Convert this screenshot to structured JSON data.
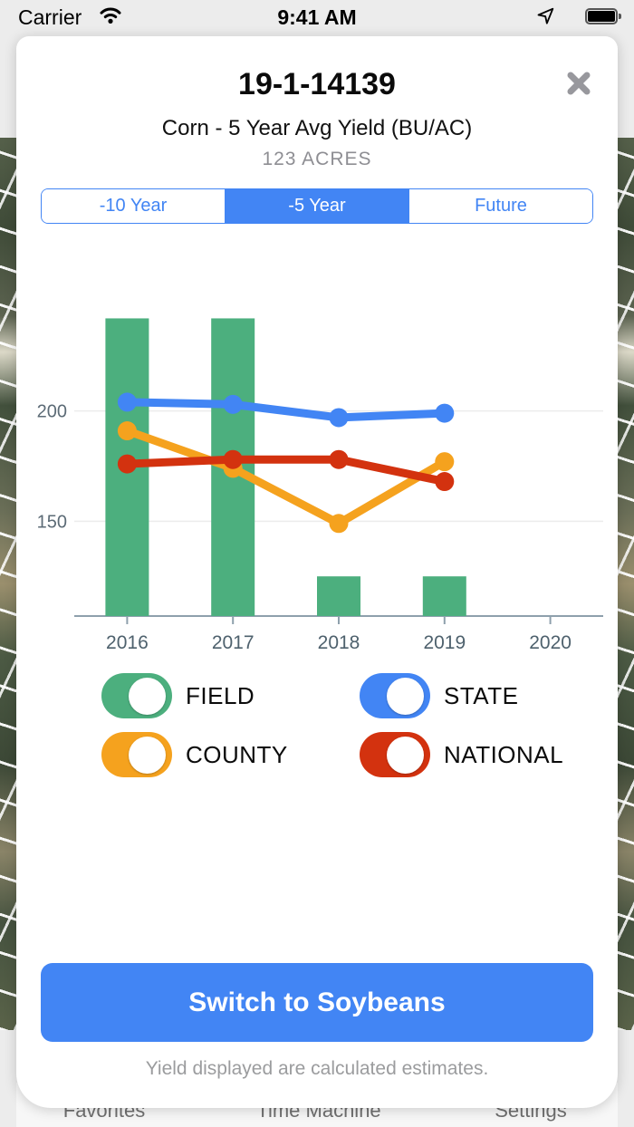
{
  "status_bar": {
    "carrier": "Carrier",
    "time": "9:41 AM"
  },
  "modal": {
    "title": "19-1-14139",
    "subtitle": "Corn - 5 Year Avg Yield (BU/AC)",
    "acres": "123 ACRES"
  },
  "segmented": {
    "options": [
      "-10 Year",
      "-5 Year",
      "Future"
    ],
    "selected": "-5 Year",
    "selected_index": 1
  },
  "chart_data": {
    "type": "bar+line",
    "categories": [
      "2016",
      "2017",
      "2018",
      "2019",
      "2020"
    ],
    "series": [
      {
        "name": "FIELD",
        "type": "bar",
        "color": "#4CAF7E",
        "values": [
          242,
          242,
          125,
          125,
          null
        ]
      },
      {
        "name": "STATE",
        "type": "line",
        "color": "#4285F4",
        "values": [
          204,
          203,
          197,
          199,
          null
        ]
      },
      {
        "name": "COUNTY",
        "type": "line",
        "color": "#F5A21E",
        "values": [
          191,
          174,
          149,
          177,
          null
        ]
      },
      {
        "name": "NATIONAL",
        "type": "line",
        "color": "#D3320F",
        "values": [
          176,
          178,
          178,
          168,
          null
        ]
      }
    ],
    "yticks": [
      150,
      200
    ],
    "ylim": [
      107,
      243
    ],
    "xlabel": "",
    "ylabel": "",
    "grid": true,
    "legend_position": "below"
  },
  "legend": [
    {
      "label": "FIELD",
      "color": "#4CAF7E",
      "on": true
    },
    {
      "label": "STATE",
      "color": "#4285F4",
      "on": true
    },
    {
      "label": "COUNTY",
      "color": "#F5A21E",
      "on": true
    },
    {
      "label": "NATIONAL",
      "color": "#D3320F",
      "on": true
    }
  ],
  "action_button": {
    "label": "Switch to Soybeans"
  },
  "footer_note": "Yield displayed are calculated estimates.",
  "tab_bar": {
    "items": [
      "Favorites",
      "Time Machine",
      "Settings"
    ]
  },
  "colors": {
    "accent_blue": "#4285F4",
    "axis_label": "#4E616D",
    "axis_line": "#8EA0AC",
    "gridline": "#ECECEC",
    "muted_text": "#8E8E93"
  }
}
